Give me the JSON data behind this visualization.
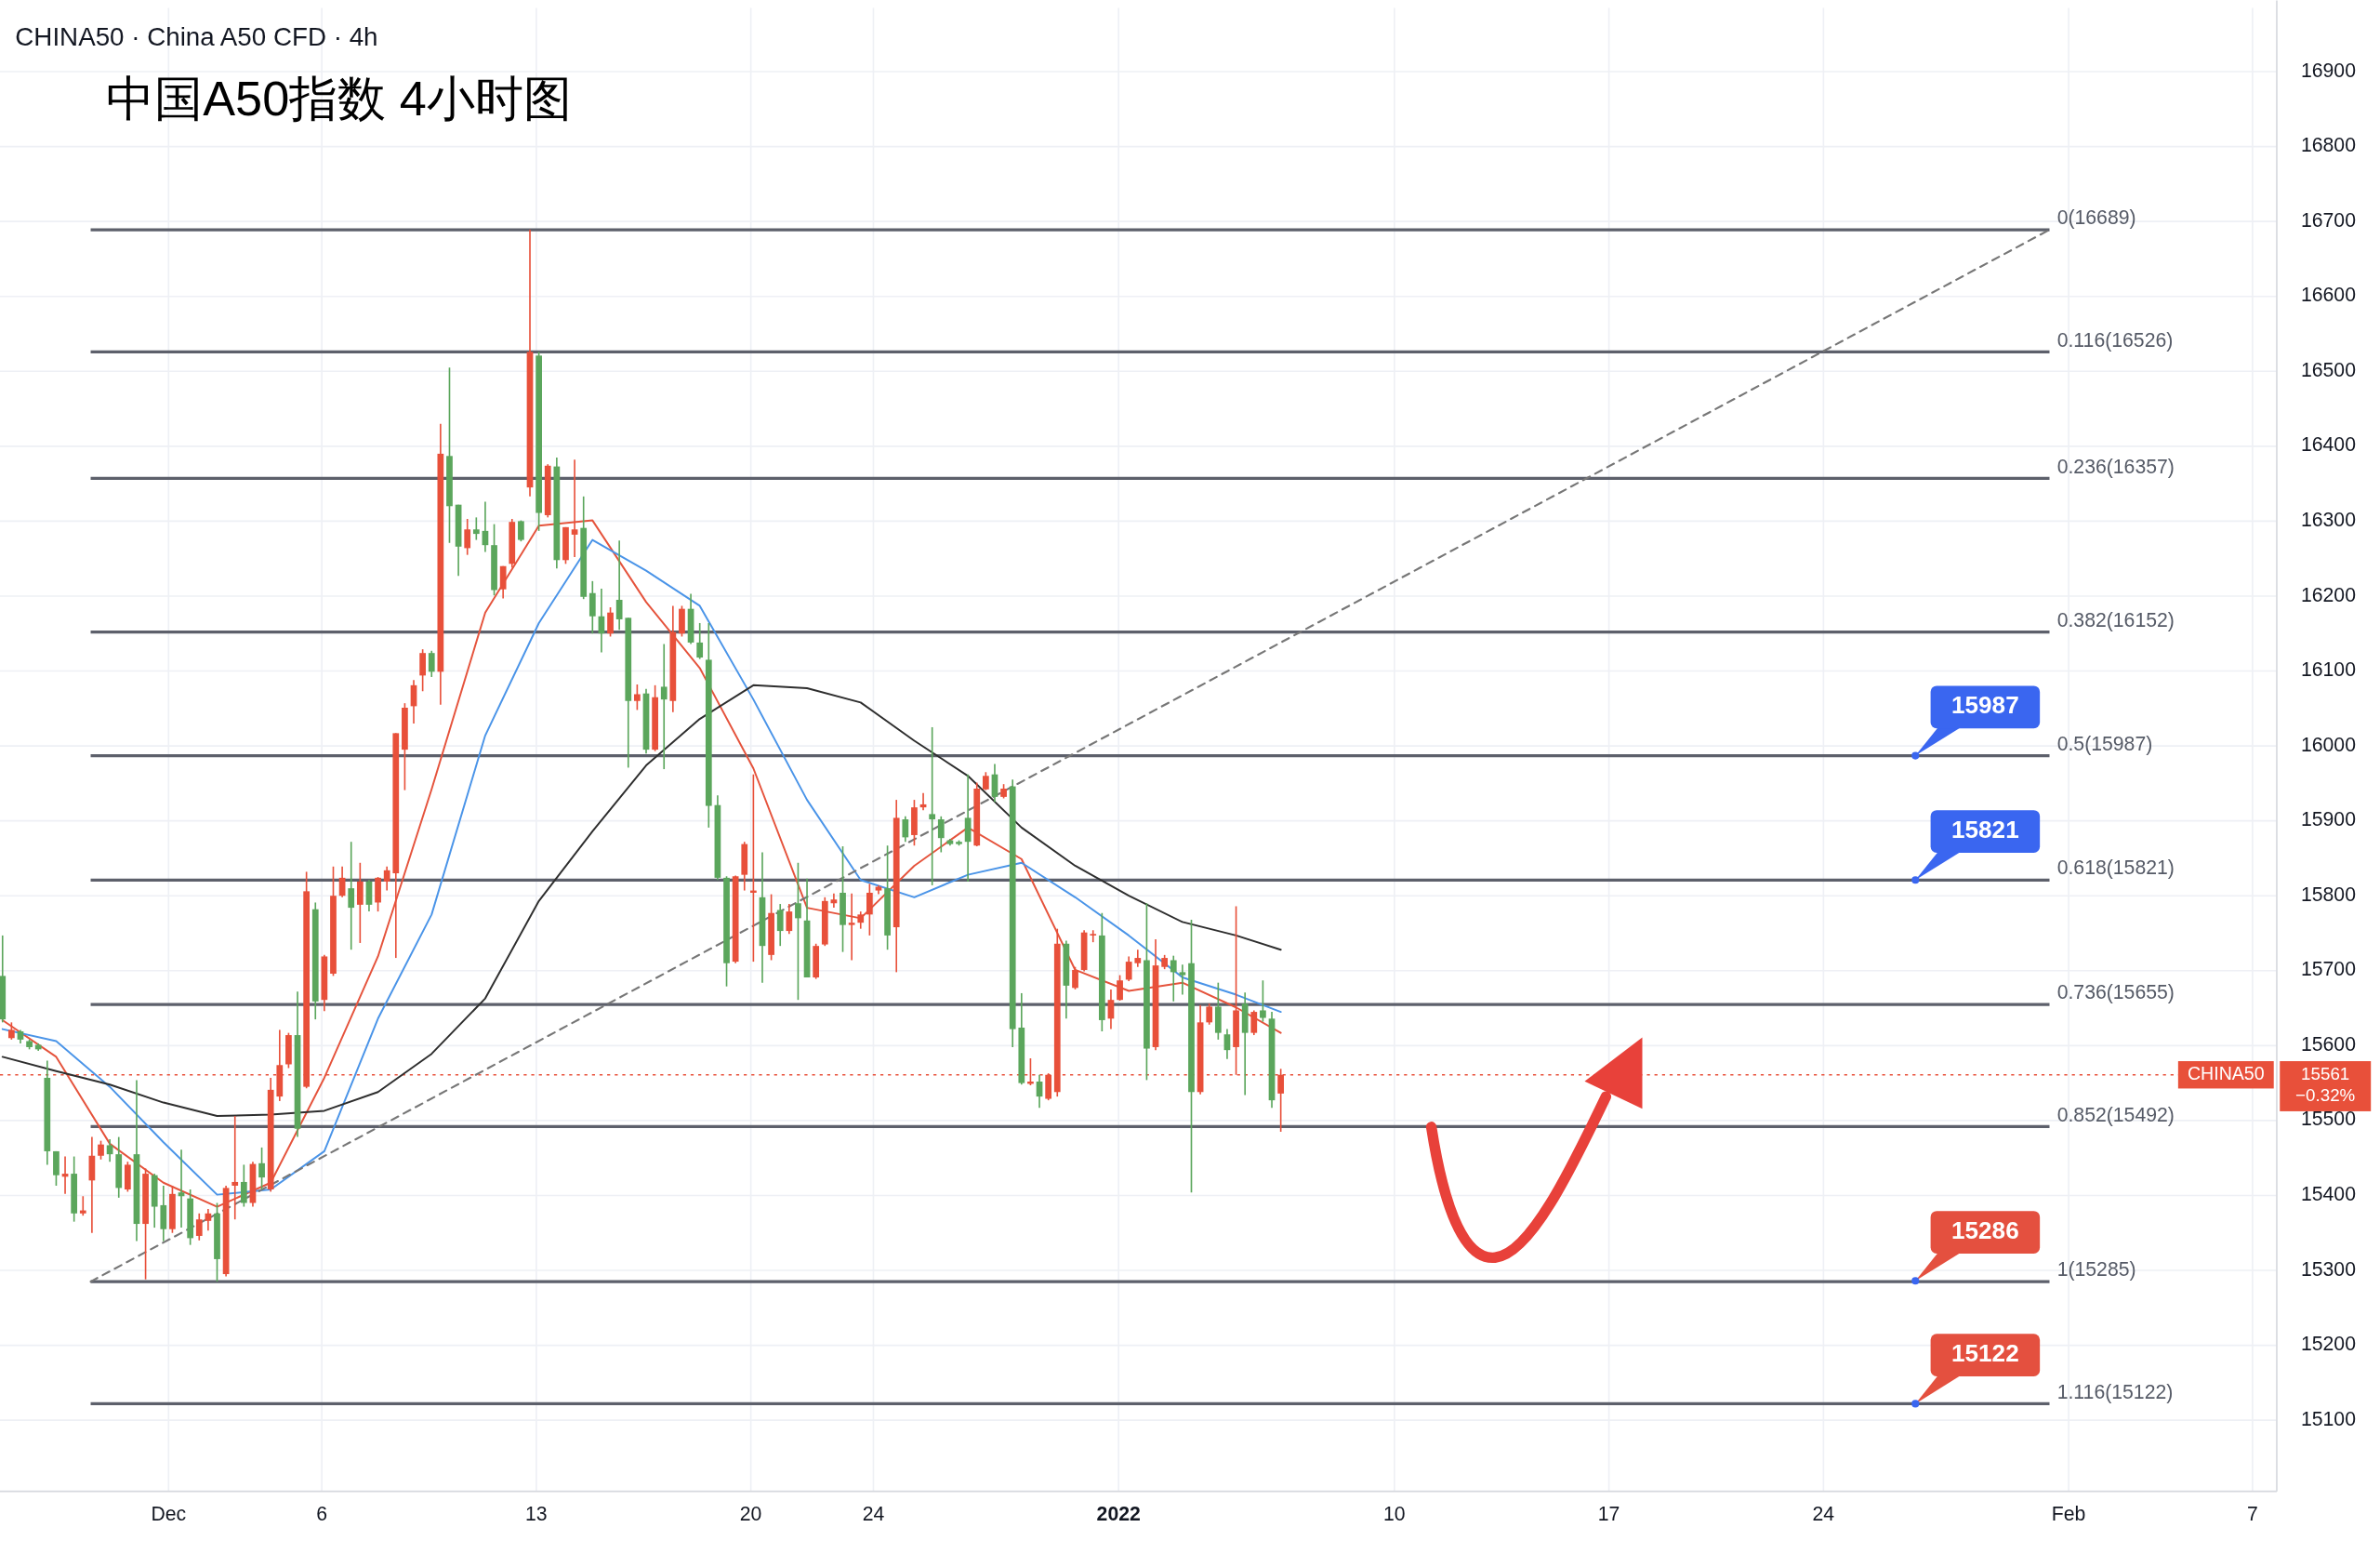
{
  "chart_data": {
    "type": "candlestick",
    "title": "中国A50指数 4小时图",
    "subtitle": "CHINA50 · China A50 CFD · 4h",
    "xlim": [
      "2021-11-25T12:00",
      "2022-02-07T19:00"
    ],
    "xticks": [
      {
        "value": "2021-12-01",
        "label": "Dec"
      },
      {
        "value": "2021-12-06",
        "label": "6"
      },
      {
        "value": "2021-12-13",
        "label": "13"
      },
      {
        "value": "2021-12-20",
        "label": "20"
      },
      {
        "value": "2021-12-24",
        "label": "24"
      },
      {
        "value": "2022-01-01",
        "label": "2022"
      },
      {
        "value": "2022-01-10",
        "label": "10"
      },
      {
        "value": "2022-01-17",
        "label": "17"
      },
      {
        "value": "2022-01-24",
        "label": "24"
      },
      {
        "value": "2022-02-01",
        "label": "Feb"
      },
      {
        "value": "2022-02-07",
        "label": "7"
      }
    ],
    "ylim": [
      15005,
      16985
    ],
    "yticks": [
      15100,
      15200,
      15300,
      15400,
      15500,
      15600,
      15700,
      15800,
      15900,
      16000,
      16100,
      16200,
      16300,
      16400,
      16500,
      16600,
      16700,
      16800,
      16900
    ],
    "grid": true,
    "series": [
      {
        "x": [
          "2021-11-25T14:00",
          "2021-11-25T21:00",
          "2021-11-26T04:00",
          "2021-11-26T11:00",
          "2021-11-26T18:00",
          "2021-11-27T01:00",
          "2021-11-27T08:00",
          "2021-11-27T15:00",
          "2021-11-27T22:00",
          "2021-11-28T05:00",
          "2021-11-28T12:00",
          "2021-11-28T19:00",
          "2021-11-29T02:00",
          "2021-11-29T09:00",
          "2021-11-29T16:00",
          "2021-11-29T23:00",
          "2021-11-30T06:00",
          "2021-11-30T13:00",
          "2021-11-30T20:00",
          "2021-12-01T03:00",
          "2021-12-01T10:00",
          "2021-12-01T17:00",
          "2021-12-02T00:00",
          "2021-12-02T07:00",
          "2021-12-02T14:00",
          "2021-12-02T21:00",
          "2021-12-03T04:00",
          "2021-12-03T11:00",
          "2021-12-03T18:00",
          "2021-12-04T01:00",
          "2021-12-04T08:00",
          "2021-12-04T15:00",
          "2021-12-04T22:00",
          "2021-12-05T05:00",
          "2021-12-05T12:00",
          "2021-12-05T19:00",
          "2021-12-06T02:00",
          "2021-12-06T09:00",
          "2021-12-06T16:00",
          "2021-12-06T23:00",
          "2021-12-07T06:00",
          "2021-12-07T13:00",
          "2021-12-07T20:00",
          "2021-12-08T03:00",
          "2021-12-08T10:00",
          "2021-12-08T17:00",
          "2021-12-09T00:00",
          "2021-12-09T07:00",
          "2021-12-09T14:00",
          "2021-12-09T21:00",
          "2021-12-10T04:00",
          "2021-12-10T11:00",
          "2021-12-10T18:00",
          "2021-12-11T01:00",
          "2021-12-11T08:00",
          "2021-12-11T15:00",
          "2021-12-11T22:00",
          "2021-12-12T05:00",
          "2021-12-12T12:00",
          "2021-12-12T19:00",
          "2021-12-13T02:00",
          "2021-12-13T09:00",
          "2021-12-13T16:00",
          "2021-12-13T23:00",
          "2021-12-14T06:00",
          "2021-12-14T13:00",
          "2021-12-14T20:00",
          "2021-12-15T03:00",
          "2021-12-15T10:00",
          "2021-12-15T17:00",
          "2021-12-16T00:00",
          "2021-12-16T07:00",
          "2021-12-16T14:00",
          "2021-12-16T21:00",
          "2021-12-17T04:00",
          "2021-12-17T11:00",
          "2021-12-17T18:00",
          "2021-12-18T01:00",
          "2021-12-18T08:00",
          "2021-12-18T15:00",
          "2021-12-18T22:00",
          "2021-12-19T05:00",
          "2021-12-19T12:00",
          "2021-12-19T19:00",
          "2021-12-20T02:00",
          "2021-12-20T09:00",
          "2021-12-20T16:00",
          "2021-12-20T23:00",
          "2021-12-21T06:00",
          "2021-12-21T13:00",
          "2021-12-21T20:00",
          "2021-12-22T03:00",
          "2021-12-22T10:00",
          "2021-12-22T17:00",
          "2021-12-23T00:00",
          "2021-12-23T07:00",
          "2021-12-23T14:00",
          "2021-12-23T21:00",
          "2021-12-24T04:00",
          "2021-12-24T11:00",
          "2021-12-24T18:00",
          "2021-12-25T01:00",
          "2021-12-25T08:00",
          "2021-12-25T15:00",
          "2021-12-25T22:00",
          "2021-12-26T05:00",
          "2021-12-26T12:00",
          "2021-12-26T19:00",
          "2021-12-27T02:00",
          "2021-12-27T09:00",
          "2021-12-27T16:00",
          "2021-12-27T23:00",
          "2021-12-28T06:00",
          "2021-12-28T13:00",
          "2021-12-28T20:00",
          "2021-12-29T03:00",
          "2021-12-29T10:00",
          "2021-12-29T17:00",
          "2021-12-30T00:00",
          "2021-12-30T07:00",
          "2021-12-30T14:00",
          "2021-12-30T21:00",
          "2021-12-31T04:00",
          "2021-12-31T11:00",
          "2021-12-31T18:00",
          "2022-01-01T01:00",
          "2022-01-01T08:00",
          "2022-01-01T15:00",
          "2022-01-01T22:00",
          "2022-01-02T05:00",
          "2022-01-02T12:00",
          "2022-01-02T19:00",
          "2022-01-03T02:00",
          "2022-01-03T09:00",
          "2022-01-03T16:00",
          "2022-01-03T23:00",
          "2022-01-04T06:00",
          "2022-01-04T13:00",
          "2022-01-04T20:00",
          "2022-01-05T03:00",
          "2022-01-05T10:00",
          "2022-01-05T17:00",
          "2022-01-06T00:00",
          "2022-01-06T07:00"
        ],
        "ohlc": [
          [
            15693,
            15747,
            15631,
            15635
          ],
          [
            15610,
            15631,
            15608,
            15621
          ],
          [
            15619,
            15621,
            15603,
            15608
          ],
          [
            15606,
            15608,
            15595,
            15598
          ],
          [
            15601,
            15603,
            15593,
            15595
          ],
          [
            15557,
            15580,
            15441,
            15459
          ],
          [
            15459,
            15459,
            15413,
            15427
          ],
          [
            15425,
            15452,
            15402,
            15429
          ],
          [
            15429,
            15452,
            15365,
            15376
          ],
          [
            15376,
            15399,
            15373,
            15380
          ],
          [
            15420,
            15478,
            15350,
            15453
          ],
          [
            15453,
            15473,
            15448,
            15468
          ],
          [
            15467,
            15475,
            15445,
            15455
          ],
          [
            15455,
            15478,
            15397,
            15410
          ],
          [
            15408,
            15445,
            15405,
            15441
          ],
          [
            15455,
            15554,
            15339,
            15362
          ],
          [
            15362,
            15436,
            15288,
            15429
          ],
          [
            15427,
            15429,
            15357,
            15385
          ],
          [
            15387,
            15413,
            15339,
            15355
          ],
          [
            15355,
            15413,
            15350,
            15402
          ],
          [
            15404,
            15461,
            15357,
            15399
          ],
          [
            15396,
            15408,
            15334,
            15343
          ],
          [
            15346,
            15376,
            15340,
            15368
          ],
          [
            15366,
            15382,
            15353,
            15376
          ],
          [
            15376,
            15390,
            15285,
            15315
          ],
          [
            15295,
            15413,
            15292,
            15410
          ],
          [
            15413,
            15506,
            15368,
            15418
          ],
          [
            15418,
            15441,
            15385,
            15390
          ],
          [
            15390,
            15445,
            15385,
            15442
          ],
          [
            15443,
            15464,
            15408,
            15424
          ],
          [
            15408,
            15557,
            15405,
            15541
          ],
          [
            15532,
            15621,
            15526,
            15574
          ],
          [
            15575,
            15617,
            15570,
            15614
          ],
          [
            15614,
            15672,
            15478,
            15489
          ],
          [
            15545,
            15832,
            15543,
            15806
          ],
          [
            15782,
            15791,
            15635,
            15659
          ],
          [
            15661,
            15721,
            15646,
            15719
          ],
          [
            15696,
            15839,
            15693,
            15800
          ],
          [
            15800,
            15839,
            15798,
            15824
          ],
          [
            15810,
            15872,
            15728,
            15784
          ],
          [
            15788,
            15844,
            15737,
            15819
          ],
          [
            15819,
            15821,
            15779,
            15788
          ],
          [
            15791,
            15825,
            15779,
            15824
          ],
          [
            15819,
            15839,
            15807,
            15834
          ],
          [
            15830,
            16017,
            15717,
            16017
          ],
          [
            15995,
            16057,
            15941,
            16051
          ],
          [
            16053,
            16088,
            16030,
            16081
          ],
          [
            16094,
            16129,
            16073,
            16124
          ],
          [
            16124,
            16127,
            16092,
            16099
          ],
          [
            16099,
            16430,
            16055,
            16390
          ],
          [
            16387,
            16505,
            16271,
            16320
          ],
          [
            16322,
            16322,
            16227,
            16266
          ],
          [
            16264,
            16303,
            16255,
            16289
          ],
          [
            16289,
            16305,
            16275,
            16283
          ],
          [
            16287,
            16326,
            16259,
            16268
          ],
          [
            16268,
            16296,
            16201,
            16208
          ],
          [
            16209,
            16240,
            16197,
            16240
          ],
          [
            16243,
            16303,
            16238,
            16299
          ],
          [
            16300,
            16301,
            16273,
            16275
          ],
          [
            16345,
            16689,
            16333,
            16526
          ],
          [
            16521,
            16526,
            16287,
            16311
          ],
          [
            16308,
            16376,
            16305,
            16374
          ],
          [
            16373,
            16385,
            16237,
            16248
          ],
          [
            16248,
            16292,
            16243,
            16292
          ],
          [
            16282,
            16382,
            16252,
            16289
          ],
          [
            16291,
            16333,
            16196,
            16199
          ],
          [
            16204,
            16220,
            16150,
            16173
          ],
          [
            16173,
            16210,
            16125,
            16150
          ],
          [
            16150,
            16185,
            16146,
            16178
          ],
          [
            16195,
            16274,
            16155,
            16169
          ],
          [
            16171,
            16171,
            15971,
            16060
          ],
          [
            16060,
            16082,
            16048,
            16069
          ],
          [
            16070,
            16076,
            15990,
            15995
          ],
          [
            15995,
            16081,
            15993,
            16065
          ],
          [
            16079,
            16136,
            15969,
            16062
          ],
          [
            16060,
            16187,
            16045,
            16152
          ],
          [
            16150,
            16187,
            16146,
            16183
          ],
          [
            16183,
            16203,
            16136,
            16138
          ],
          [
            16138,
            16164,
            16116,
            16118
          ],
          [
            16115,
            16164,
            15891,
            15920
          ],
          [
            15921,
            15934,
            15821,
            15824
          ],
          [
            15824,
            15826,
            15679,
            15710
          ],
          [
            15712,
            15827,
            15710,
            15826
          ],
          [
            15828,
            15872,
            15807,
            15869
          ],
          [
            15804,
            15962,
            15712,
            15807
          ],
          [
            15798,
            15858,
            15684,
            15733
          ],
          [
            15721,
            15802,
            15714,
            15777
          ],
          [
            15781,
            15789,
            15733,
            15753
          ],
          [
            15753,
            15789,
            15749,
            15779
          ],
          [
            15790,
            15844,
            15661,
            15770
          ],
          [
            15767,
            15823,
            15691,
            15691
          ],
          [
            15691,
            15736,
            15689,
            15733
          ],
          [
            15735,
            15798,
            15733,
            15793
          ],
          [
            15790,
            15803,
            15784,
            15795
          ],
          [
            15804,
            15866,
            15725,
            15761
          ],
          [
            15761,
            15803,
            15714,
            15764
          ],
          [
            15764,
            15779,
            15756,
            15775
          ],
          [
            15775,
            15816,
            15747,
            15804
          ],
          [
            15807,
            15814,
            15802,
            15812
          ],
          [
            15810,
            15867,
            15728,
            15747
          ],
          [
            15758,
            15928,
            15698,
            15904
          ],
          [
            15902,
            15906,
            15872,
            15878
          ],
          [
            15881,
            15928,
            15867,
            15918
          ],
          [
            15918,
            15937,
            15914,
            15922
          ],
          [
            15909,
            16025,
            15814,
            15902
          ],
          [
            15902,
            15906,
            15858,
            15877
          ],
          [
            15874,
            15876,
            15867,
            15869
          ],
          [
            15872,
            15874,
            15867,
            15869
          ],
          [
            15904,
            15962,
            15819,
            15872
          ],
          [
            15867,
            15951,
            15866,
            15943
          ],
          [
            15942,
            15965,
            15941,
            15960
          ],
          [
            15962,
            15976,
            15925,
            15932
          ],
          [
            15932,
            15949,
            15930,
            15943
          ],
          [
            15946,
            15955,
            15598,
            15622
          ],
          [
            15624,
            15670,
            15548,
            15550
          ],
          [
            15549,
            15583,
            15547,
            15552
          ],
          [
            15552,
            15561,
            15517,
            15532
          ],
          [
            15529,
            15563,
            15527,
            15561
          ],
          [
            15538,
            15756,
            15532,
            15736
          ],
          [
            15736,
            15740,
            15636,
            15680
          ],
          [
            15677,
            15705,
            15675,
            15701
          ],
          [
            15701,
            15754,
            15699,
            15751
          ],
          [
            15747,
            15754,
            15738,
            15749
          ],
          [
            15747,
            15777,
            15619,
            15634
          ],
          [
            15636,
            15675,
            15622,
            15661
          ],
          [
            15661,
            15694,
            15660,
            15687
          ],
          [
            15688,
            15719,
            15686,
            15712
          ],
          [
            15710,
            15728,
            15705,
            15717
          ],
          [
            15714,
            15790,
            15554,
            15596
          ],
          [
            15598,
            15742,
            15594,
            15707
          ],
          [
            15705,
            15721,
            15702,
            15717
          ],
          [
            15714,
            15720,
            15659,
            15698
          ],
          [
            15698,
            15708,
            15668,
            15694
          ],
          [
            15710,
            15768,
            15404,
            15538
          ],
          [
            15538,
            15654,
            15535,
            15631
          ],
          [
            15631,
            15656,
            15628,
            15652
          ],
          [
            15652,
            15684,
            15608,
            15617
          ],
          [
            15615,
            15622,
            15582,
            15594
          ],
          [
            15598,
            15786,
            15561,
            15647
          ],
          [
            15656,
            15671,
            15534,
            15617
          ],
          [
            15617,
            15647,
            15614,
            15645
          ],
          [
            15647,
            15687,
            15632,
            15637
          ],
          [
            15636,
            15645,
            15517,
            15527
          ],
          [
            15536,
            15569,
            15485,
            15561
          ]
        ],
        "colors": [
          "#5ba65c",
          "#e8503a",
          "#5ba65c",
          "#5ba65c",
          "#5ba65c",
          "#5ba65c",
          "#5ba65c",
          "#e8503a",
          "#5ba65c",
          "#e8503a",
          "#e8503a",
          "#e8503a",
          "#5ba65c",
          "#5ba65c",
          "#e8503a",
          "#5ba65c",
          "#e8503a",
          "#5ba65c",
          "#5ba65c",
          "#e8503a",
          "#5ba65c",
          "#5ba65c",
          "#e8503a",
          "#e8503a",
          "#5ba65c",
          "#e8503a",
          "#e8503a",
          "#5ba65c",
          "#e8503a",
          "#5ba65c",
          "#e8503a",
          "#e8503a",
          "#e8503a",
          "#5ba65c",
          "#e8503a",
          "#5ba65c",
          "#e8503a",
          "#e8503a",
          "#e8503a",
          "#5ba65c",
          "#e8503a",
          "#5ba65c",
          "#e8503a",
          "#e8503a",
          "#e8503a",
          "#e8503a",
          "#e8503a",
          "#e8503a",
          "#5ba65c",
          "#e8503a",
          "#5ba65c",
          "#5ba65c",
          "#e8503a",
          "#5ba65c",
          "#5ba65c",
          "#5ba65c",
          "#e8503a",
          "#e8503a",
          "#5ba65c",
          "#e8503a",
          "#5ba65c",
          "#e8503a",
          "#5ba65c",
          "#e8503a",
          "#e8503a",
          "#5ba65c",
          "#5ba65c",
          "#5ba65c",
          "#e8503a",
          "#5ba65c",
          "#5ba65c",
          "#e8503a",
          "#5ba65c",
          "#e8503a",
          "#5ba65c",
          "#e8503a",
          "#e8503a",
          "#5ba65c",
          "#5ba65c",
          "#5ba65c",
          "#5ba65c",
          "#5ba65c",
          "#e8503a",
          "#e8503a",
          "#e8503a",
          "#5ba65c",
          "#e8503a",
          "#5ba65c",
          "#e8503a",
          "#5ba65c",
          "#5ba65c",
          "#e8503a",
          "#e8503a",
          "#e8503a",
          "#5ba65c",
          "#e8503a",
          "#e8503a",
          "#e8503a",
          "#e8503a",
          "#5ba65c",
          "#e8503a",
          "#5ba65c",
          "#e8503a",
          "#e8503a",
          "#5ba65c",
          "#5ba65c",
          "#5ba65c",
          "#5ba65c",
          "#5ba65c",
          "#e8503a",
          "#e8503a",
          "#5ba65c",
          "#e8503a",
          "#5ba65c",
          "#5ba65c",
          "#e8503a",
          "#5ba65c",
          "#e8503a",
          "#e8503a",
          "#5ba65c",
          "#e8503a",
          "#e8503a",
          "#e8503a",
          "#5ba65c",
          "#e8503a",
          "#e8503a",
          "#e8503a",
          "#e8503a",
          "#5ba65c",
          "#e8503a",
          "#e8503a",
          "#5ba65c",
          "#5ba65c",
          "#5ba65c",
          "#e8503a",
          "#e8503a",
          "#5ba65c",
          "#5ba65c",
          "#e8503a",
          "#5ba65c",
          "#e8503a",
          "#5ba65c",
          "#5ba65c",
          "#e8503a"
        ]
      },
      {
        "type": "line",
        "color": "#e5533c",
        "x": [
          "2021-11-25T14:00",
          "2021-11-27T08:00",
          "2021-11-29T02:00",
          "2021-11-30T20:00",
          "2021-12-02T14:00",
          "2021-12-04T08:00",
          "2021-12-06T02:00",
          "2021-12-07T20:00",
          "2021-12-09T14:00",
          "2021-12-11T08:00",
          "2021-12-13T02:00",
          "2021-12-14T20:00",
          "2021-12-16T14:00",
          "2021-12-18T08:00",
          "2021-12-20T02:00",
          "2021-12-21T20:00",
          "2021-12-23T14:00",
          "2021-12-25T08:00",
          "2021-12-27T02:00",
          "2021-12-28T20:00",
          "2021-12-30T14:00",
          "2022-01-01T08:00",
          "2022-01-03T02:00",
          "2022-01-04T20:00",
          "2022-01-06T07:00"
        ],
        "values": [
          15634,
          15585,
          15469,
          15417,
          15385,
          15417,
          15557,
          15719,
          15942,
          16178,
          16294,
          16301,
          16192,
          16104,
          15970,
          15784,
          15770,
          15840,
          15891,
          15849,
          15701,
          15673,
          15684,
          15651,
          15617
        ]
      },
      {
        "type": "line",
        "color": "#4a94e8",
        "x": [
          "2021-11-25T14:00",
          "2021-11-27T08:00",
          "2021-11-29T02:00",
          "2021-11-30T20:00",
          "2021-12-02T14:00",
          "2021-12-04T08:00",
          "2021-12-06T02:00",
          "2021-12-07T20:00",
          "2021-12-09T14:00",
          "2021-12-11T08:00",
          "2021-12-13T02:00",
          "2021-12-14T20:00",
          "2021-12-16T14:00",
          "2021-12-18T08:00",
          "2021-12-20T02:00",
          "2021-12-21T20:00",
          "2021-12-23T14:00",
          "2021-12-25T08:00",
          "2021-12-27T02:00",
          "2021-12-28T20:00",
          "2021-12-30T14:00",
          "2022-01-01T08:00",
          "2022-01-03T02:00",
          "2022-01-04T20:00",
          "2022-01-06T07:00"
        ],
        "values": [
          15622,
          15606,
          15545,
          15471,
          15401,
          15408,
          15459,
          15636,
          15775,
          16014,
          16164,
          16275,
          16234,
          16187,
          16062,
          15928,
          15821,
          15798,
          15828,
          15844,
          15798,
          15747,
          15691,
          15668,
          15645
        ]
      },
      {
        "type": "line",
        "color": "#2e2e2e",
        "x": [
          "2021-11-25T14:00",
          "2021-11-27T08:00",
          "2021-11-29T02:00",
          "2021-11-30T20:00",
          "2021-12-02T14:00",
          "2021-12-04T08:00",
          "2021-12-06T02:00",
          "2021-12-07T20:00",
          "2021-12-09T14:00",
          "2021-12-11T08:00",
          "2021-12-13T02:00",
          "2021-12-14T20:00",
          "2021-12-16T14:00",
          "2021-12-18T08:00",
          "2021-12-20T02:00",
          "2021-12-21T20:00",
          "2021-12-23T14:00",
          "2021-12-25T08:00",
          "2021-12-27T02:00",
          "2021-12-28T20:00",
          "2021-12-30T14:00",
          "2022-01-01T08:00",
          "2022-01-03T02:00",
          "2022-01-04T20:00",
          "2022-01-06T07:00"
        ],
        "values": [
          15585,
          15566,
          15548,
          15524,
          15506,
          15508,
          15513,
          15538,
          15589,
          15663,
          15793,
          15886,
          15974,
          16036,
          16081,
          16077,
          16058,
          16007,
          15960,
          15891,
          15840,
          15800,
          15765,
          15747,
          15728
        ]
      },
      {
        "type": "line",
        "color": "#777777",
        "line_style": "dashed",
        "x": [
          "2021-11-28T11:00",
          "2022-01-31T09:00"
        ],
        "values": [
          15285,
          16689
        ]
      }
    ],
    "ref_lines": [
      {
        "axis": "y",
        "value": 16689,
        "label": "0(16689)",
        "color": "#5d606b"
      },
      {
        "axis": "y",
        "value": 16526,
        "label": "0.116(16526)",
        "color": "#5d606b"
      },
      {
        "axis": "y",
        "value": 16357,
        "label": "0.236(16357)",
        "color": "#5d606b"
      },
      {
        "axis": "y",
        "value": 16152,
        "label": "0.382(16152)",
        "color": "#5d606b"
      },
      {
        "axis": "y",
        "value": 15987,
        "label": "0.5(15987)",
        "color": "#5d606b"
      },
      {
        "axis": "y",
        "value": 15821,
        "label": "0.618(15821)",
        "color": "#5d606b"
      },
      {
        "axis": "y",
        "value": 15655,
        "label": "0.736(15655)",
        "color": "#5d606b"
      },
      {
        "axis": "y",
        "value": 15492,
        "label": "0.852(15492)",
        "color": "#5d606b"
      },
      {
        "axis": "y",
        "value": 15285,
        "label": "1(15285)",
        "color": "#5d606b"
      },
      {
        "axis": "y",
        "value": 15122,
        "label": "1.116(15122)",
        "color": "#5d606b"
      },
      {
        "axis": "y",
        "value": 15561,
        "label": "CHINA50",
        "color": "#e8503a",
        "line_style": "dotted"
      }
    ],
    "annotations": [
      {
        "text": "15987",
        "x": "2022-01-27",
        "y": 15987
      },
      {
        "text": "15821",
        "x": "2022-01-27",
        "y": 15821
      },
      {
        "text": "15286",
        "x": "2022-01-27",
        "y": 15286
      },
      {
        "text": "15122",
        "x": "2022-01-27",
        "y": 15122
      },
      "15561",
      "−0.32%"
    ]
  }
}
